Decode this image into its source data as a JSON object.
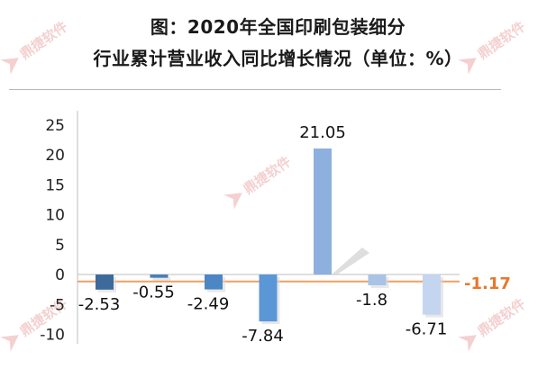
{
  "title": {
    "line1": "图：2020年全国印刷包装细分",
    "line2": "行业累计营业收入同比增长情况（单位：%）"
  },
  "watermark": {
    "text": "鼎捷软件",
    "color": "#e07a7a"
  },
  "chart_data": {
    "type": "bar",
    "title": "图：2020年全国印刷包装细分行业累计营业收入同比增长情况（单位：%）",
    "xlabel": "",
    "ylabel": "",
    "ylim": [
      -10,
      25
    ],
    "yticks": [
      25,
      20,
      15,
      10,
      5,
      0,
      -5,
      -10
    ],
    "grid": false,
    "legend": "none",
    "values": [
      -2.53,
      -0.55,
      -2.49,
      -7.84,
      21.05,
      -1.8,
      -6.71
    ],
    "labels": [
      "-2.53",
      "-0.55",
      "-2.49",
      "-7.84",
      "21.05",
      "-1.8",
      "-6.71"
    ],
    "colors": [
      "#3d6a9a",
      "#4a7fb6",
      "#4d86c4",
      "#5b97d6",
      "#8db0de",
      "#a9c3e6",
      "#c3d5ef"
    ],
    "reference_line": {
      "value": -1.17,
      "label": "-1.17",
      "color": "#f0a060",
      "label_color": "#e8782a"
    }
  }
}
